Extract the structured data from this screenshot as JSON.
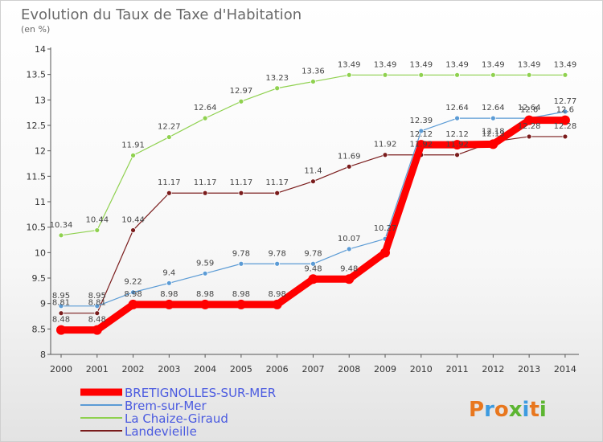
{
  "header": {
    "title": "Evolution du Taux de Taxe d'Habitation",
    "unit": "(en %)"
  },
  "brand": {
    "text": "Proxiti",
    "colors": [
      "#e8771e",
      "#3d9be0",
      "#e8771e",
      "#5cb531",
      "#3d9be0",
      "#e8771e",
      "#5cb531"
    ]
  },
  "chart_data": {
    "type": "line",
    "title": "Evolution du Taux de Taxe d'Habitation",
    "ylabel": "(en %)",
    "xlabel": "",
    "ylim": [
      8,
      14
    ],
    "yticks": [
      {
        "value": 8,
        "label": "8"
      },
      {
        "value": 8.5,
        "label": "8.5"
      },
      {
        "value": 9,
        "label": "9"
      },
      {
        "value": 9.5,
        "label": "9.5"
      },
      {
        "value": 10,
        "label": "10"
      },
      {
        "value": 10.5,
        "label": "10.5"
      },
      {
        "value": 11,
        "label": "11"
      },
      {
        "value": 11.5,
        "label": "11.5"
      },
      {
        "value": 12,
        "label": "12"
      },
      {
        "value": 12.5,
        "label": "12.5"
      },
      {
        "value": 13,
        "label": "13"
      },
      {
        "value": 13.5,
        "label": "13.5"
      },
      {
        "value": 14,
        "label": "14"
      }
    ],
    "categories": [
      "2000",
      "2001",
      "2002",
      "2003",
      "2004",
      "2005",
      "2006",
      "2007",
      "2008",
      "2009",
      "2010",
      "2011",
      "2012",
      "2013",
      "2014"
    ],
    "grid": false,
    "legend_position": "bottom-left",
    "series": [
      {
        "name": "BRETIGNOLLES-SUR-MER",
        "color": "#ff0000",
        "values": [
          8.48,
          8.48,
          8.98,
          8.98,
          8.98,
          8.98,
          8.98,
          9.48,
          9.48,
          10.0,
          12.12,
          12.12,
          12.13,
          12.6,
          12.6
        ],
        "labels": [
          "8.48",
          "8.48",
          "8.98",
          "8.98",
          "8.98",
          "8.98",
          "8.98",
          "9.48",
          "9.48",
          "",
          "12.12",
          "12.12",
          "12.13",
          "12.6",
          "12.6"
        ]
      },
      {
        "name": "Brem-sur-Mer",
        "color": "#5b9bd5",
        "values": [
          8.95,
          8.95,
          9.22,
          9.4,
          9.59,
          9.78,
          9.78,
          9.78,
          10.07,
          10.27,
          12.39,
          12.64,
          12.64,
          12.64,
          12.77
        ],
        "labels": [
          "8.95",
          "8.95",
          "9.22",
          "9.4",
          "9.59",
          "9.78",
          "9.78",
          "9.78",
          "10.07",
          "10.27",
          "12.39",
          "12.64",
          "12.64",
          "12.64",
          "12.77"
        ]
      },
      {
        "name": "La Chaize-Giraud",
        "color": "#8fd14f",
        "values": [
          10.34,
          10.44,
          11.91,
          12.27,
          12.64,
          12.97,
          13.23,
          13.36,
          13.49,
          13.49,
          13.49,
          13.49,
          13.49,
          13.49,
          13.49
        ],
        "labels": [
          "10.34",
          "10.44",
          "11.91",
          "12.27",
          "12.64",
          "12.97",
          "13.23",
          "13.36",
          "13.49",
          "13.49",
          "13.49",
          "13.49",
          "13.49",
          "13.49",
          "13.49"
        ]
      },
      {
        "name": "Landevieille",
        "color": "#7a1c1c",
        "values": [
          8.81,
          8.81,
          10.44,
          11.17,
          11.17,
          11.17,
          11.17,
          11.4,
          11.69,
          11.92,
          11.92,
          11.92,
          12.18,
          12.28,
          12.28
        ],
        "labels": [
          "8.81",
          "8.81",
          "10.44",
          "11.17",
          "11.17",
          "11.17",
          "11.17",
          "11.4",
          "11.69",
          "11.92",
          "11.92",
          "11.92",
          "12.18",
          "12.28",
          "12.28"
        ]
      }
    ]
  }
}
